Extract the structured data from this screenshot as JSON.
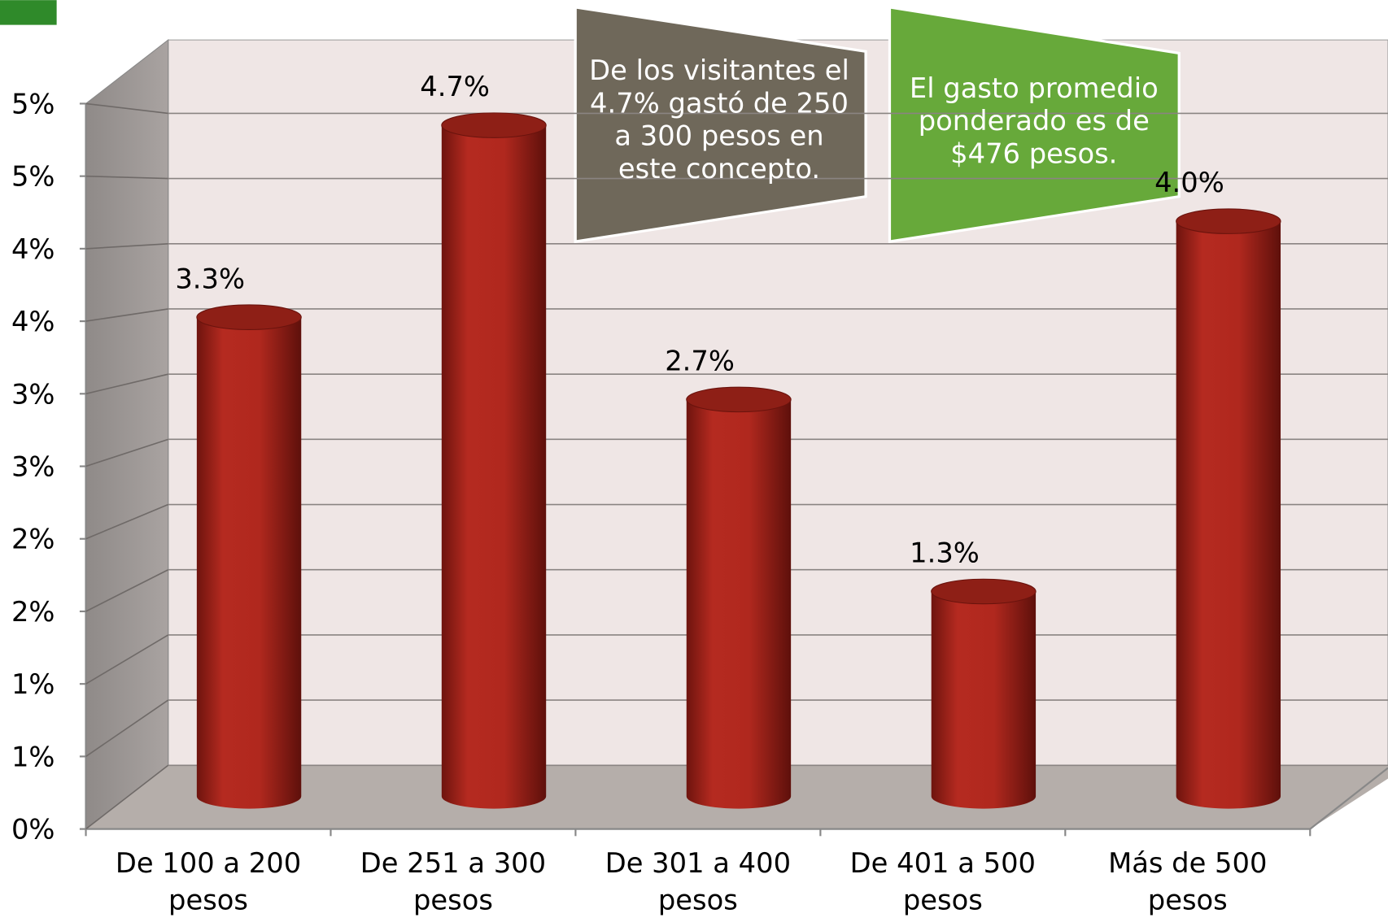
{
  "chart_data": {
    "type": "bar",
    "categories": [
      "De 100 a 200 pesos",
      "De 251 a 300 pesos",
      "De 301 a 400 pesos",
      "De 401 a 500 pesos",
      "Más de 500 pesos"
    ],
    "values": [
      3.3,
      4.7,
      2.7,
      1.3,
      4.0
    ],
    "value_labels": [
      "3.3%",
      "4.7%",
      "2.7%",
      "1.3%",
      "4.0%"
    ],
    "color": "#b0281e",
    "ylim": [
      0,
      5
    ],
    "yticks": [
      {
        "value": 0,
        "label": "0%"
      },
      {
        "value": 0.5,
        "label": "1%"
      },
      {
        "value": 1,
        "label": "1%"
      },
      {
        "value": 1.5,
        "label": "2%"
      },
      {
        "value": 2,
        "label": "2%"
      },
      {
        "value": 2.5,
        "label": "3%"
      },
      {
        "value": 3,
        "label": "3%"
      },
      {
        "value": 3.5,
        "label": "4%"
      },
      {
        "value": 4,
        "label": "4%"
      },
      {
        "value": 4.5,
        "label": "5%"
      },
      {
        "value": 5,
        "label": "5%"
      }
    ],
    "grid": true,
    "annotations": [
      "De los visitantes el 4.7% gastó de 250 a 300 pesos en este concepto.",
      "El gasto promedio ponderado es de $476 pesos."
    ]
  }
}
